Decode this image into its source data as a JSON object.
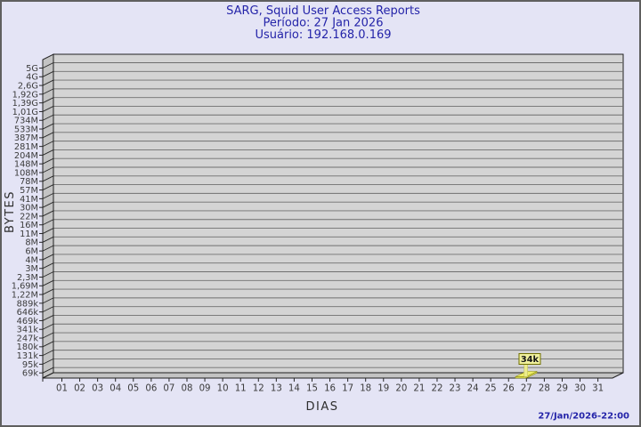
{
  "window": {
    "background_color": "#e4e4f5",
    "border_color": "#5f5f5f"
  },
  "header": {
    "title": "SARG, Squid User Access Reports",
    "period": "Período: 27 Jan 2026",
    "user": "Usuário: 192.168.0.169",
    "text_color": "#2424a9"
  },
  "chart": {
    "ylabel": "BYTES",
    "xlabel": "DIAS",
    "y_tick_labels": [
      "5G",
      "4G",
      "2,6G",
      "1,92G",
      "1,39G",
      "1,01G",
      "734M",
      "533M",
      "387M",
      "281M",
      "204M",
      "148M",
      "108M",
      "78M",
      "57M",
      "41M",
      "30M",
      "22M",
      "16M",
      "11M",
      "8M",
      "6M",
      "4M",
      "3M",
      "2,3M",
      "1,69M",
      "1,22M",
      "889k",
      "646k",
      "469k",
      "341k",
      "247k",
      "180k",
      "131k",
      "95k",
      "69k"
    ],
    "x_tick_labels": [
      "01",
      "02",
      "03",
      "04",
      "05",
      "06",
      "07",
      "08",
      "09",
      "10",
      "11",
      "12",
      "13",
      "14",
      "15",
      "16",
      "17",
      "18",
      "19",
      "20",
      "21",
      "22",
      "23",
      "24",
      "25",
      "26",
      "27",
      "28",
      "29",
      "30",
      "31"
    ],
    "bar": {
      "day": "27",
      "label": "34k",
      "color": "#efef6a",
      "label_box_fill": "#f1f19e",
      "label_box_border": "#6f6f00"
    },
    "colors": {
      "plot_face": "#d4d4d4",
      "wall": "#c3c3c3",
      "gridline": "#6f6f6f",
      "frame": "#1f1f1f",
      "tick_text": "#3b3b3b"
    }
  },
  "footer": {
    "timestamp": "27/Jan/2026-22:00"
  },
  "chart_data": {
    "type": "bar",
    "title": "SARG, Squid User Access Reports",
    "subtitle_period": "Período: 27 Jan 2026",
    "subtitle_user": "Usuário: 192.168.0.169",
    "xlabel": "DIAS",
    "ylabel": "BYTES",
    "categories": [
      "01",
      "02",
      "03",
      "04",
      "05",
      "06",
      "07",
      "08",
      "09",
      "10",
      "11",
      "12",
      "13",
      "14",
      "15",
      "16",
      "17",
      "18",
      "19",
      "20",
      "21",
      "22",
      "23",
      "24",
      "25",
      "26",
      "27",
      "28",
      "29",
      "30",
      "31"
    ],
    "values": [
      0,
      0,
      0,
      0,
      0,
      0,
      0,
      0,
      0,
      0,
      0,
      0,
      0,
      0,
      0,
      0,
      0,
      0,
      0,
      0,
      0,
      0,
      0,
      0,
      0,
      0,
      34000,
      0,
      0,
      0,
      0
    ],
    "annotations": [
      {
        "category": "27",
        "label": "34k",
        "value_bytes": 34000
      }
    ],
    "y_axis": {
      "scale": "logarithmic-like",
      "tick_labels_top_to_bottom": [
        "5G",
        "4G",
        "2,6G",
        "1,92G",
        "1,39G",
        "1,01G",
        "734M",
        "533M",
        "387M",
        "281M",
        "204M",
        "148M",
        "108M",
        "78M",
        "57M",
        "41M",
        "30M",
        "22M",
        "16M",
        "11M",
        "8M",
        "6M",
        "4M",
        "3M",
        "2,3M",
        "1,69M",
        "1,22M",
        "889k",
        "646k",
        "469k",
        "341k",
        "247k",
        "180k",
        "131k",
        "95k",
        "69k"
      ],
      "min_label": "69k",
      "max_label": "5G"
    },
    "grid": true,
    "legend": false,
    "bar_color": "#efef6a",
    "style": "3d-box",
    "footer_timestamp": "27/Jan/2026-22:00"
  }
}
